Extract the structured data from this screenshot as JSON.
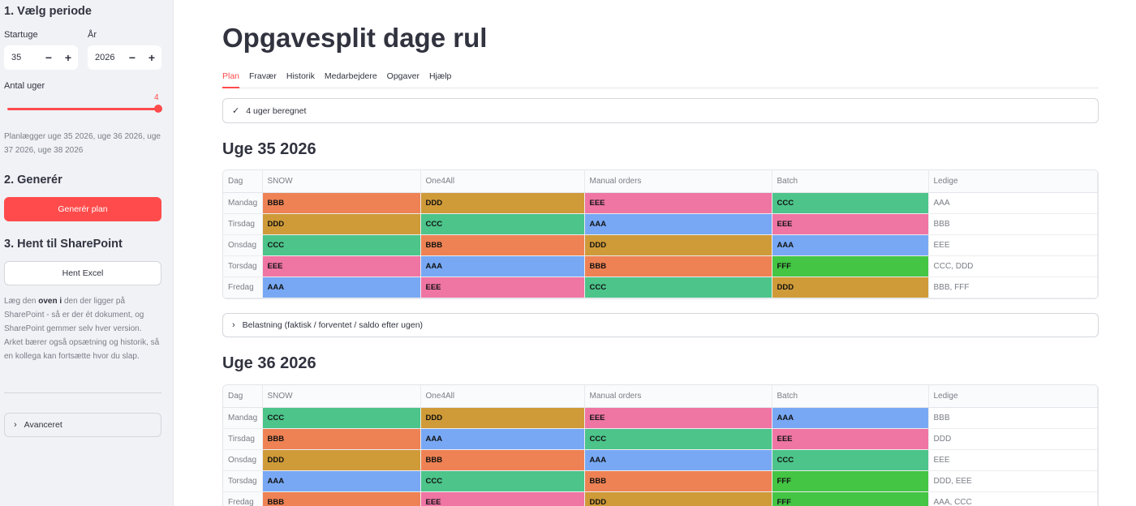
{
  "sidebar": {
    "period_heading": "1. Vælg periode",
    "startuge_label": "Startuge",
    "startuge_value": "35",
    "aar_label": "År",
    "aar_value": "2026",
    "minus": "−",
    "plus": "+",
    "antal_uger_label": "Antal uger",
    "antal_uger_value": "4",
    "antal_uger_min": 1,
    "antal_uger_max": 4,
    "plan_caption": "Planlægger uge 35 2026, uge 36 2026, uge 37 2026, uge 38 2026",
    "generate_heading": "2. Generér",
    "generate_button": "Generér plan",
    "sharepoint_heading": "3. Hent til SharePoint",
    "download_button": "Hent Excel",
    "help_part1": "Læg den ",
    "help_bold1": "oven i",
    "help_part2": " den der ligger på SharePoint - så er der ét dokument, og SharePoint gemmer selv hver version. Arket bærer også opsætning og historik, så en kollega kan fortsætte hvor du slap.",
    "advanced_label": "Avanceret"
  },
  "main": {
    "title": "Opgavesplit dage rul",
    "tabs": [
      "Plan",
      "Fravær",
      "Historik",
      "Medarbejdere",
      "Opgaver",
      "Hjælp"
    ],
    "status": "4 uger beregnet",
    "columns": [
      "Dag",
      "SNOW",
      "One4All",
      "Manual orders",
      "Batch",
      "Ledige"
    ],
    "load_expander": "Belastning (faktisk / forventet / saldo efter ugen)",
    "weeks": [
      {
        "title": "Uge 35 2026",
        "rows": [
          [
            "Mandag",
            "BBB",
            "DDD",
            "EEE",
            "CCC",
            "AAA"
          ],
          [
            "Tirsdag",
            "DDD",
            "CCC",
            "AAA",
            "EEE",
            "BBB"
          ],
          [
            "Onsdag",
            "CCC",
            "BBB",
            "DDD",
            "AAA",
            "EEE"
          ],
          [
            "Torsdag",
            "EEE",
            "AAA",
            "BBB",
            "FFF",
            "CCC, DDD"
          ],
          [
            "Fredag",
            "AAA",
            "EEE",
            "CCC",
            "DDD",
            "BBB, FFF"
          ]
        ]
      },
      {
        "title": "Uge 36 2026",
        "rows": [
          [
            "Mandag",
            "CCC",
            "DDD",
            "EEE",
            "AAA",
            "BBB"
          ],
          [
            "Tirsdag",
            "BBB",
            "AAA",
            "CCC",
            "EEE",
            "DDD"
          ],
          [
            "Onsdag",
            "DDD",
            "BBB",
            "AAA",
            "CCC",
            "EEE"
          ],
          [
            "Torsdag",
            "AAA",
            "CCC",
            "BBB",
            "FFF",
            "DDD, EEE"
          ],
          [
            "Fredag",
            "BBB",
            "EEE",
            "DDD",
            "FFF",
            "AAA, CCC"
          ]
        ]
      }
    ]
  },
  "person_colors": {
    "AAA": "#78a8f4",
    "BBB": "#ee8254",
    "CCC": "#4cc48a",
    "DDD": "#cf9a38",
    "EEE": "#ef75a3",
    "FFF": "#44c544"
  },
  "accent": "#ff4b4b"
}
